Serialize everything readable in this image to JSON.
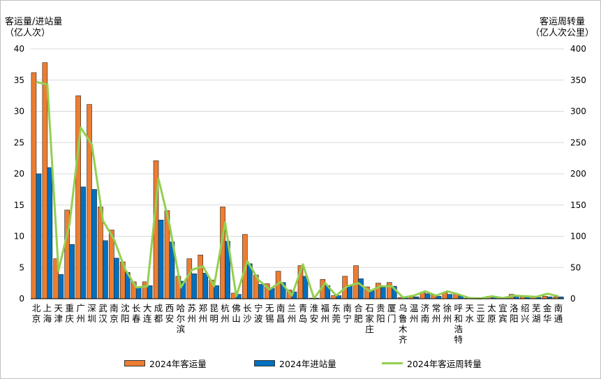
{
  "chart_data": {
    "type": "bar",
    "y_left_label": [
      "客运量/进站量",
      "（亿人次）"
    ],
    "y_right_label": [
      "客运周转量",
      "（亿人次公里）"
    ],
    "y_left_range": [
      0,
      40
    ],
    "y_left_ticks": [
      0,
      5,
      10,
      15,
      20,
      25,
      30,
      35,
      40
    ],
    "y_right_range": [
      0,
      400
    ],
    "y_right_ticks": [
      0,
      50,
      100,
      150,
      200,
      250,
      300,
      350,
      400
    ],
    "grid": true,
    "legend_position": "bottom",
    "categories": [
      "北京",
      "上海",
      "天津",
      "重庆",
      "广州",
      "深圳",
      "武汉",
      "南京",
      "沈阳",
      "长春",
      "大连",
      "成都",
      "西安",
      "哈尔滨",
      "苏州",
      "郑州",
      "昆明",
      "杭州",
      "佛山",
      "长沙",
      "宁波",
      "无锡",
      "南昌",
      "兰州",
      "青岛",
      "淮安",
      "福州",
      "东莞",
      "南宁",
      "合肥",
      "石家庄",
      "贵阳",
      "厦门",
      "乌鲁木齐",
      "温州",
      "济南",
      "常州",
      "徐州",
      "呼和浩特",
      "天水",
      "三亚",
      "太原",
      "宜宾",
      "洛阳",
      "绍兴",
      "芜湖",
      "金华",
      "南通"
    ],
    "series": [
      {
        "name": "2024年客运量",
        "kind": "bar",
        "axis": "left",
        "color": "#ED7D31",
        "values": [
          36.2,
          37.8,
          6.4,
          14.2,
          32.5,
          31.1,
          14.7,
          11.0,
          5.9,
          2.7,
          2.7,
          22.1,
          14.1,
          3.6,
          6.4,
          7.0,
          3.0,
          14.7,
          0.9,
          10.3,
          3.8,
          2.4,
          4.4,
          1.4,
          5.3,
          0.1,
          3.1,
          0.5,
          3.6,
          5.3,
          1.9,
          2.5,
          2.6,
          0.2,
          0.3,
          1.0,
          0.6,
          1.0,
          0.7,
          0.1,
          0.05,
          0.4,
          0.15,
          0.7,
          0.3,
          0.25,
          0.4,
          0.3
        ]
      },
      {
        "name": "2024年进站量",
        "kind": "bar",
        "axis": "left",
        "color": "#0070C0",
        "values": [
          20.0,
          21.0,
          3.9,
          8.7,
          17.9,
          17.5,
          9.3,
          6.5,
          4.2,
          1.9,
          2.1,
          12.6,
          9.1,
          2.8,
          4.0,
          4.1,
          2.1,
          9.2,
          0.7,
          5.6,
          2.3,
          1.7,
          2.6,
          1.1,
          3.6,
          0.1,
          2.1,
          0.5,
          2.2,
          3.2,
          1.3,
          1.8,
          2.0,
          0.2,
          0.3,
          0.8,
          0.4,
          0.7,
          0.5,
          0.1,
          0.05,
          0.4,
          0.1,
          0.5,
          0.3,
          0.2,
          0.3,
          0.3
        ]
      },
      {
        "name": "2024年客运周转量",
        "kind": "line",
        "axis": "right",
        "color": "#92D050",
        "values": [
          347,
          343,
          45,
          120,
          274,
          247,
          125,
          95,
          47,
          18,
          20,
          192,
          118,
          18,
          46,
          52,
          20,
          122,
          4,
          60,
          30,
          15,
          27,
          5,
          55,
          0.5,
          25,
          5,
          20,
          25,
          12,
          20,
          20,
          2,
          5,
          12,
          5,
          12,
          7,
          1,
          0.5,
          4,
          1,
          5,
          4,
          3,
          8,
          4
        ]
      }
    ]
  }
}
